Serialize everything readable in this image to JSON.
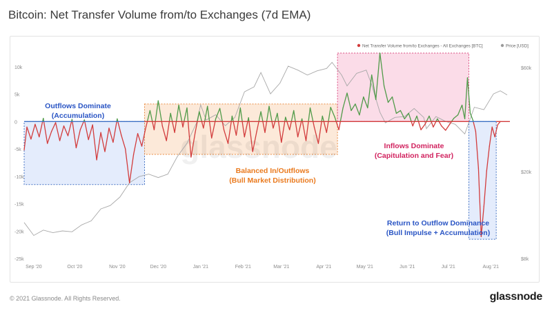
{
  "header": {
    "title": "Bitcoin: Net Transfer Volume from/to Exchanges (7d EMA)"
  },
  "footer": {
    "copyright": "© 2021 Glassnode. All Rights Reserved.",
    "brand": "glassnode"
  },
  "watermark": "glassnode",
  "colors": {
    "inflow": "#d23b3b",
    "outflow": "#4f9a48",
    "price": "#a8a8a8",
    "zero_line": "#d13a3a",
    "zero_line_outflow": "#3b6fc4",
    "blue_box_fill": "#dbe6fb",
    "blue_box_border": "#3f6fc2",
    "orange_box_fill": "#fbe1cc",
    "orange_box_border": "#e98a3f",
    "pink_box_fill": "#fad0e0",
    "pink_box_border": "#d9487e",
    "blue_text": "#2a55c4",
    "orange_text": "#ea7a1e",
    "pink_text": "#d1235f"
  },
  "chart_data": {
    "type": "line",
    "title": "Bitcoin: Net Transfer Volume from/to Exchanges (7d EMA)",
    "legend": {
      "position": "top-right",
      "items": [
        {
          "label": "Net Transfer Volume from/to Exchanges - All Exchanges [BTC]",
          "color": "#d23b3b"
        },
        {
          "label": "Price [USD]",
          "color": "#9a9a9a"
        }
      ]
    },
    "x_ticks": [
      "Sep '20",
      "Oct '20",
      "Nov '20",
      "Dec '20",
      "Jan '21",
      "Feb '21",
      "Mar '21",
      "Apr '21",
      "May '21",
      "Jun '21",
      "Jul '21",
      "Aug '21"
    ],
    "x_range": [
      "2020-09-01",
      "2021-08-22"
    ],
    "y_left": {
      "ticks": [
        "10k",
        "5k",
        "0",
        "-5k",
        "-10k",
        "-15k",
        "-20k",
        "-25k"
      ],
      "range": [
        -25000,
        12500
      ]
    },
    "y_right": {
      "ticks": [
        "$60k",
        "$20k",
        "$8k"
      ],
      "scale": "log",
      "range": [
        8000,
        70000
      ]
    },
    "grid": false,
    "annotations": [
      {
        "id": "outflows",
        "line1": "Outflows Dominate",
        "line2": "(Accumulation)",
        "from": "2020-09-01",
        "to": "2020-11-28",
        "y_top": 0,
        "y_bottom": -11500,
        "style": "blue"
      },
      {
        "id": "balanced",
        "line1": "Balanced In/Outflows",
        "line2": "(Bull Market Distribution)",
        "from": "2020-11-28",
        "to": "2021-04-18",
        "y_top": 3200,
        "y_bottom": -6000,
        "style": "orange"
      },
      {
        "id": "inflows",
        "line1": "Inflows Dominate",
        "line2": "(Capitulation and Fear)",
        "from": "2021-04-18",
        "to": "2021-07-23",
        "y_top": 12500,
        "y_bottom": 0,
        "style": "pink"
      },
      {
        "id": "return",
        "line1": "Return to Outflow Dominance",
        "line2": "(Bull Impulse + Accumulation)",
        "from": "2021-07-23",
        "to": "2021-08-12",
        "y_top": 0,
        "y_bottom": -21500,
        "style": "blue"
      }
    ],
    "series": [
      {
        "name": "Net Transfer Volume from/to Exchanges - All Exchanges [BTC]",
        "axis": "left",
        "values": [
          [
            "2020-09-01",
            -5200
          ],
          [
            "2020-09-03",
            -1000
          ],
          [
            "2020-09-06",
            -3200
          ],
          [
            "2020-09-09",
            -500
          ],
          [
            "2020-09-12",
            -2800
          ],
          [
            "2020-09-15",
            600
          ],
          [
            "2020-09-18",
            -4000
          ],
          [
            "2020-09-21",
            -1800
          ],
          [
            "2020-09-24",
            -200
          ],
          [
            "2020-09-27",
            -3500
          ],
          [
            "2020-09-30",
            -800
          ],
          [
            "2020-10-03",
            -2600
          ],
          [
            "2020-10-06",
            400
          ],
          [
            "2020-10-09",
            -4800
          ],
          [
            "2020-10-12",
            -1500
          ],
          [
            "2020-10-15",
            300
          ],
          [
            "2020-10-18",
            -3300
          ],
          [
            "2020-10-21",
            -600
          ],
          [
            "2020-10-24",
            -7000
          ],
          [
            "2020-10-27",
            -2000
          ],
          [
            "2020-10-30",
            -5500
          ],
          [
            "2020-11-02",
            -1200
          ],
          [
            "2020-11-05",
            -3800
          ],
          [
            "2020-11-08",
            500
          ],
          [
            "2020-11-11",
            -2500
          ],
          [
            "2020-11-14",
            -5000
          ],
          [
            "2020-11-17",
            -11200
          ],
          [
            "2020-11-20",
            -6000
          ],
          [
            "2020-11-23",
            -2200
          ],
          [
            "2020-11-26",
            -4500
          ],
          [
            "2020-11-29",
            -1000
          ],
          [
            "2020-12-02",
            2000
          ],
          [
            "2020-12-05",
            -1500
          ],
          [
            "2020-12-08",
            3800
          ],
          [
            "2020-12-11",
            -800
          ],
          [
            "2020-12-14",
            -3500
          ],
          [
            "2020-12-17",
            1500
          ],
          [
            "2020-12-20",
            -2000
          ],
          [
            "2020-12-23",
            3000
          ],
          [
            "2020-12-26",
            -1000
          ],
          [
            "2020-12-29",
            2500
          ],
          [
            "2021-01-01",
            -6500
          ],
          [
            "2021-01-04",
            -2000
          ],
          [
            "2021-01-07",
            1800
          ],
          [
            "2021-01-10",
            -1200
          ],
          [
            "2021-01-13",
            2800
          ],
          [
            "2021-01-16",
            -3000
          ],
          [
            "2021-01-19",
            500
          ],
          [
            "2021-01-22",
            2400
          ],
          [
            "2021-01-25",
            -1500
          ],
          [
            "2021-01-28",
            -4000
          ],
          [
            "2021-01-31",
            1000
          ],
          [
            "2021-02-03",
            -2500
          ],
          [
            "2021-02-06",
            2500
          ],
          [
            "2021-02-09",
            -2800
          ],
          [
            "2021-02-12",
            700
          ],
          [
            "2021-02-15",
            -5500
          ],
          [
            "2021-02-18",
            -1800
          ],
          [
            "2021-02-21",
            1800
          ],
          [
            "2021-02-24",
            -2000
          ],
          [
            "2021-02-27",
            2800
          ],
          [
            "2021-03-02",
            -1200
          ],
          [
            "2021-03-05",
            1500
          ],
          [
            "2021-03-08",
            -3800
          ],
          [
            "2021-03-11",
            800
          ],
          [
            "2021-03-14",
            -1500
          ],
          [
            "2021-03-17",
            2000
          ],
          [
            "2021-03-20",
            -2800
          ],
          [
            "2021-03-23",
            500
          ],
          [
            "2021-03-26",
            -3500
          ],
          [
            "2021-03-29",
            2500
          ],
          [
            "2021-04-01",
            -1000
          ],
          [
            "2021-04-04",
            -4000
          ],
          [
            "2021-04-07",
            1000
          ],
          [
            "2021-04-10",
            -2000
          ],
          [
            "2021-04-13",
            2600
          ],
          [
            "2021-04-16",
            800
          ],
          [
            "2021-04-19",
            -1500
          ],
          [
            "2021-04-22",
            2500
          ],
          [
            "2021-04-25",
            5200
          ],
          [
            "2021-04-28",
            2000
          ],
          [
            "2021-05-01",
            3200
          ],
          [
            "2021-05-04",
            1200
          ],
          [
            "2021-05-07",
            4500
          ],
          [
            "2021-05-10",
            2500
          ],
          [
            "2021-05-13",
            8500
          ],
          [
            "2021-05-16",
            4000
          ],
          [
            "2021-05-19",
            12500
          ],
          [
            "2021-05-22",
            6500
          ],
          [
            "2021-05-25",
            3500
          ],
          [
            "2021-05-28",
            4500
          ],
          [
            "2021-05-31",
            1500
          ],
          [
            "2021-06-03",
            2000
          ],
          [
            "2021-06-06",
            500
          ],
          [
            "2021-06-09",
            1500
          ],
          [
            "2021-06-12",
            -800
          ],
          [
            "2021-06-15",
            1000
          ],
          [
            "2021-06-18",
            -1500
          ],
          [
            "2021-06-21",
            -500
          ],
          [
            "2021-06-24",
            1000
          ],
          [
            "2021-06-27",
            -1000
          ],
          [
            "2021-06-30",
            500
          ],
          [
            "2021-07-03",
            -800
          ],
          [
            "2021-07-06",
            -1600
          ],
          [
            "2021-07-09",
            -500
          ],
          [
            "2021-07-12",
            600
          ],
          [
            "2021-07-15",
            1200
          ],
          [
            "2021-07-18",
            3000
          ],
          [
            "2021-07-20",
            500
          ],
          [
            "2021-07-22",
            8000
          ],
          [
            "2021-07-24",
            1500
          ],
          [
            "2021-07-26",
            200
          ],
          [
            "2021-07-28",
            -1800
          ],
          [
            "2021-07-30",
            -8500
          ],
          [
            "2021-08-01",
            -21000
          ],
          [
            "2021-08-03",
            -15500
          ],
          [
            "2021-08-05",
            -9000
          ],
          [
            "2021-08-07",
            -4500
          ],
          [
            "2021-08-09",
            -1000
          ],
          [
            "2021-08-11",
            -2800
          ],
          [
            "2021-08-13",
            -600
          ],
          [
            "2021-08-15",
            0
          ]
        ]
      },
      {
        "name": "Price [USD]",
        "axis": "right",
        "values": [
          [
            "2020-09-01",
            11700
          ],
          [
            "2020-09-08",
            10200
          ],
          [
            "2020-09-15",
            10800
          ],
          [
            "2020-09-22",
            10500
          ],
          [
            "2020-09-29",
            10700
          ],
          [
            "2020-10-06",
            10600
          ],
          [
            "2020-10-13",
            11400
          ],
          [
            "2020-10-20",
            11900
          ],
          [
            "2020-10-27",
            13500
          ],
          [
            "2020-11-03",
            14000
          ],
          [
            "2020-11-10",
            15300
          ],
          [
            "2020-11-17",
            17800
          ],
          [
            "2020-11-24",
            19000
          ],
          [
            "2020-12-01",
            19500
          ],
          [
            "2020-12-08",
            18800
          ],
          [
            "2020-12-15",
            19500
          ],
          [
            "2020-12-22",
            23500
          ],
          [
            "2020-12-29",
            27000
          ],
          [
            "2021-01-05",
            33500
          ],
          [
            "2021-01-08",
            40500
          ],
          [
            "2021-01-12",
            34500
          ],
          [
            "2021-01-19",
            36500
          ],
          [
            "2021-01-26",
            32500
          ],
          [
            "2021-02-02",
            35500
          ],
          [
            "2021-02-09",
            46500
          ],
          [
            "2021-02-16",
            49000
          ],
          [
            "2021-02-21",
            57000
          ],
          [
            "2021-02-28",
            45500
          ],
          [
            "2021-03-07",
            51000
          ],
          [
            "2021-03-13",
            61000
          ],
          [
            "2021-03-20",
            58500
          ],
          [
            "2021-03-27",
            55500
          ],
          [
            "2021-04-03",
            58000
          ],
          [
            "2021-04-10",
            59500
          ],
          [
            "2021-04-14",
            63500
          ],
          [
            "2021-04-21",
            55500
          ],
          [
            "2021-04-25",
            49500
          ],
          [
            "2021-05-02",
            56500
          ],
          [
            "2021-05-09",
            58500
          ],
          [
            "2021-05-13",
            50000
          ],
          [
            "2021-05-19",
            37500
          ],
          [
            "2021-05-23",
            33500
          ],
          [
            "2021-05-30",
            35500
          ],
          [
            "2021-06-06",
            35800
          ],
          [
            "2021-06-13",
            39000
          ],
          [
            "2021-06-20",
            35500
          ],
          [
            "2021-06-22",
            31500
          ],
          [
            "2021-06-29",
            35800
          ],
          [
            "2021-07-06",
            34000
          ],
          [
            "2021-07-13",
            33000
          ],
          [
            "2021-07-20",
            29800
          ],
          [
            "2021-07-27",
            39500
          ],
          [
            "2021-08-03",
            38500
          ],
          [
            "2021-08-10",
            45500
          ],
          [
            "2021-08-15",
            47000
          ],
          [
            "2021-08-20",
            45000
          ]
        ]
      }
    ]
  }
}
